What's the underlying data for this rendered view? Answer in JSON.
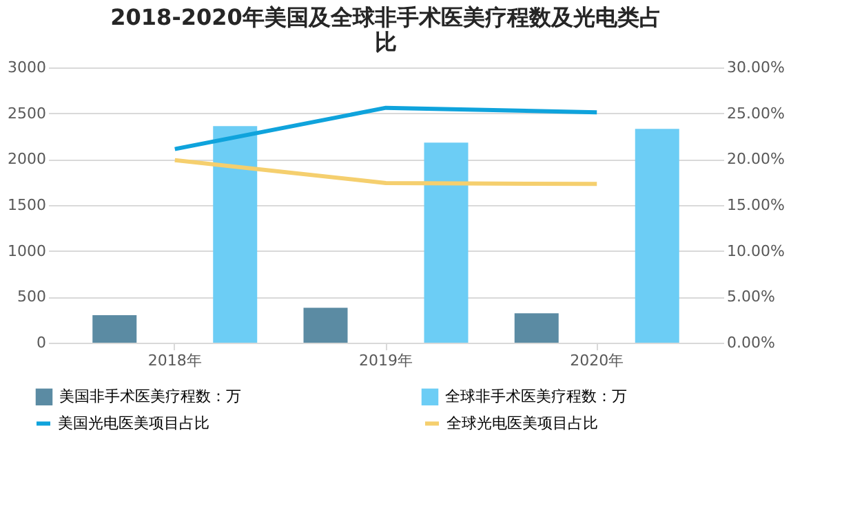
{
  "chart_data": {
    "type": "bar",
    "title": "2018-2020年美国及全球非手术医美疗程数及光电类占比",
    "categories": [
      "2018年",
      "2019年",
      "2020年"
    ],
    "series": [
      {
        "name": "美国非手术医美疗程数：万",
        "color": "#5b8ba3",
        "values": [
          300,
          380,
          320
        ]
      },
      {
        "name": "全球非手术医美疗程数：万",
        "color": "#6ccdf5",
        "values": [
          2360,
          2180,
          2330
        ]
      },
      {
        "name": "美国光电医美项目占比",
        "type": "line",
        "axis": "y2",
        "color": "#0fa3dc",
        "values": [
          21.1,
          25.6,
          25.1
        ]
      },
      {
        "name": "全球光电医美项目占比",
        "type": "line",
        "axis": "y2",
        "color": "#f5cf6e",
        "values": [
          19.9,
          17.4,
          17.3
        ]
      }
    ],
    "ylim": [
      0,
      3000
    ],
    "yticks": [
      0,
      500,
      1000,
      1500,
      2000,
      2500,
      3000
    ],
    "y2lim": [
      0,
      30
    ],
    "y2ticks": [
      {
        "value": 0,
        "label": "0.00%"
      },
      {
        "value": 5,
        "label": "5.00%"
      },
      {
        "value": 10,
        "label": "10.00%"
      },
      {
        "value": 15,
        "label": "15.00%"
      },
      {
        "value": 20,
        "label": "20.00%"
      },
      {
        "value": 25,
        "label": "25.00%"
      },
      {
        "value": 30,
        "label": "30.00%"
      }
    ],
    "grid": "y",
    "legend": "bottom",
    "marker": "none",
    "line_style": "solid"
  }
}
